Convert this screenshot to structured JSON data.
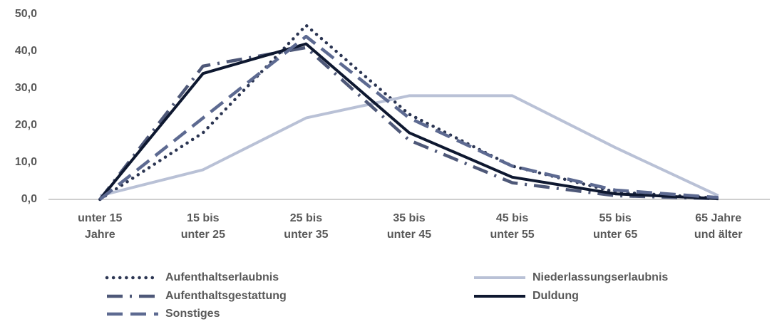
{
  "chart_data": {
    "type": "line",
    "categories": [
      [
        "unter 15",
        "Jahre"
      ],
      [
        "15 bis",
        "unter 25"
      ],
      [
        "25 bis",
        "unter 35"
      ],
      [
        "35 bis",
        "unter 45"
      ],
      [
        "45 bis",
        "unter 55"
      ],
      [
        "55 bis",
        "unter 65"
      ],
      [
        "65 Jahre",
        "und älter"
      ]
    ],
    "series": [
      {
        "name": "Aufenthaltserlaubnis",
        "color": "#2b3552",
        "dash": "dotted",
        "values": [
          0,
          18,
          47,
          23,
          9,
          2,
          0.3
        ]
      },
      {
        "name": "Niederlassungserlaubnis",
        "color": "#b9c1d6",
        "dash": "solid",
        "values": [
          1,
          8,
          22,
          28,
          28,
          14,
          1
        ]
      },
      {
        "name": "Aufenthaltsgestattung",
        "color": "#4e5878",
        "dash": "dashdot",
        "values": [
          0,
          36,
          41,
          16,
          4.5,
          1,
          0.2
        ]
      },
      {
        "name": "Duldung",
        "color": "#0e1830",
        "dash": "solid",
        "values": [
          0,
          34,
          42,
          18,
          6,
          1.5,
          0.2
        ]
      },
      {
        "name": "Sonstiges",
        "color": "#5d6a91",
        "dash": "dashed",
        "values": [
          0,
          22,
          44,
          22,
          9,
          2.5,
          0.5
        ]
      }
    ],
    "ylim": [
      0,
      50
    ],
    "yticks": [
      {
        "value": 0,
        "label": "0,0"
      },
      {
        "value": 10,
        "label": "10,0"
      },
      {
        "value": 20,
        "label": "20,0"
      },
      {
        "value": 30,
        "label": "30,0"
      },
      {
        "value": 40,
        "label": "40,0"
      },
      {
        "value": 50,
        "label": "50,0"
      }
    ]
  }
}
